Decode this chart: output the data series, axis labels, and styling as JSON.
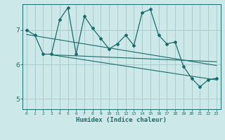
{
  "xlabel": "Humidex (Indice chaleur)",
  "background_color": "#cce8e8",
  "grid_color": "#aacccc",
  "line_color": "#1a6b6b",
  "xlim": [
    -0.5,
    23.5
  ],
  "ylim": [
    4.7,
    7.75
  ],
  "xticks": [
    0,
    1,
    2,
    3,
    4,
    5,
    6,
    7,
    8,
    9,
    10,
    11,
    12,
    13,
    14,
    15,
    16,
    17,
    18,
    19,
    20,
    21,
    22,
    23
  ],
  "yticks": [
    5,
    6,
    7
  ],
  "main_x": [
    0,
    1,
    2,
    3,
    4,
    5,
    6,
    7,
    8,
    9,
    10,
    11,
    12,
    13,
    14,
    15,
    16,
    17,
    18,
    19,
    20,
    21,
    22,
    23
  ],
  "main_y": [
    7.0,
    6.85,
    6.3,
    6.3,
    7.3,
    7.65,
    6.3,
    7.4,
    7.05,
    6.75,
    6.45,
    6.6,
    6.85,
    6.55,
    7.5,
    7.6,
    6.85,
    6.6,
    6.65,
    5.95,
    5.6,
    5.35,
    5.55,
    5.6
  ],
  "line2_x": [
    0,
    23
  ],
  "line2_y": [
    6.87,
    5.97
  ],
  "line3_x": [
    3,
    23
  ],
  "line3_y": [
    6.28,
    5.55
  ],
  "line4_x": [
    3,
    23
  ],
  "line4_y": [
    6.28,
    6.08
  ]
}
